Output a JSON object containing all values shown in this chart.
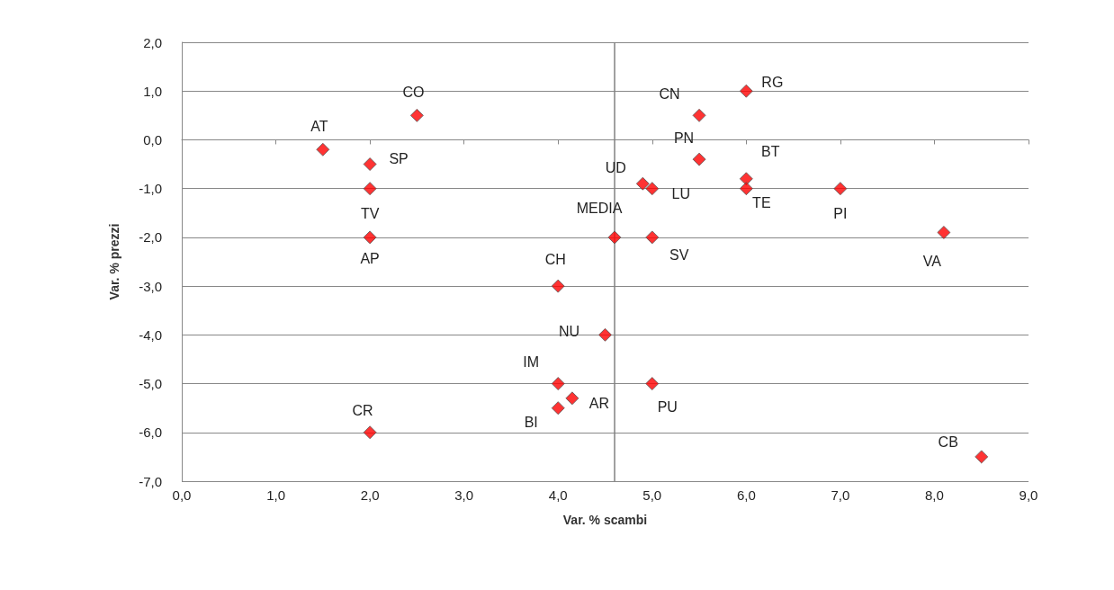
{
  "chart_data": {
    "type": "scatter",
    "xlabel": "Var. % scambi",
    "ylabel": "Var. % prezzi",
    "x": [
      1.5,
      2.5,
      2.0,
      2.0,
      2.0,
      2.0,
      4.0,
      4.5,
      4.0,
      4.15,
      4.0,
      4.6,
      4.9,
      5.0,
      5.0,
      5.0,
      5.5,
      5.5,
      6.0,
      6.0,
      6.0,
      7.0,
      8.1,
      8.5
    ],
    "series": [
      {
        "color": "#ff0000",
        "values": [
          -0.2,
          0.5,
          -0.5,
          -1.0,
          -2.0,
          -6.0,
          -3.0,
          -4.0,
          -5.0,
          -5.3,
          -5.5,
          -2.0,
          -0.9,
          -1.0,
          -2.0,
          -5.0,
          0.5,
          -0.4,
          1.0,
          -0.8,
          -1.0,
          -1.0,
          -1.9,
          -6.5
        ]
      }
    ],
    "marker": "diamond",
    "grid": "y",
    "xlim": [
      0,
      9
    ],
    "xticks": [
      {
        "value": 0,
        "label": "0,0"
      },
      {
        "value": 1,
        "label": "1,0"
      },
      {
        "value": 2,
        "label": "2,0"
      },
      {
        "value": 3,
        "label": "3,0"
      },
      {
        "value": 4,
        "label": "4,0"
      },
      {
        "value": 5,
        "label": "5,0"
      },
      {
        "value": 6,
        "label": "6,0"
      },
      {
        "value": 7,
        "label": "7,0"
      },
      {
        "value": 8,
        "label": "8,0"
      },
      {
        "value": 9,
        "label": "9,0"
      }
    ],
    "ylim": [
      -7,
      2
    ],
    "yticks": [
      {
        "value": -7,
        "label": "-7,0"
      },
      {
        "value": -6,
        "label": "-6,0"
      },
      {
        "value": -5,
        "label": "-5,0"
      },
      {
        "value": -4,
        "label": "-4,0"
      },
      {
        "value": -3,
        "label": "-3,0"
      },
      {
        "value": -2,
        "label": "-2,0"
      },
      {
        "value": -1,
        "label": "-1,0"
      },
      {
        "value": 0,
        "label": "0,0"
      },
      {
        "value": 1,
        "label": "1,0"
      },
      {
        "value": 2,
        "label": "2,0"
      }
    ],
    "ref_lines": [
      {
        "axis": "x",
        "value": 4.6,
        "color": "#808080"
      }
    ],
    "annotations": [
      {
        "text": "AT",
        "x": 1.5,
        "y": -0.2
      },
      {
        "text": "CO",
        "x": 2.5,
        "y": 0.5
      },
      {
        "text": "SP",
        "x": 2.0,
        "y": -0.5
      },
      {
        "text": "TV",
        "x": 2.0,
        "y": -1.0
      },
      {
        "text": "AP",
        "x": 2.0,
        "y": -2.0
      },
      {
        "text": "CR",
        "x": 2.0,
        "y": -6.0
      },
      {
        "text": "CH",
        "x": 4.0,
        "y": -3.0
      },
      {
        "text": "NU",
        "x": 4.5,
        "y": -4.0
      },
      {
        "text": "IM",
        "x": 4.0,
        "y": -5.0
      },
      {
        "text": "AR",
        "x": 4.15,
        "y": -5.3
      },
      {
        "text": "BI",
        "x": 4.0,
        "y": -5.5
      },
      {
        "text": "MEDIA",
        "x": 4.6,
        "y": -2.0
      },
      {
        "text": "UD",
        "x": 4.9,
        "y": -0.9
      },
      {
        "text": "LU",
        "x": 5.0,
        "y": -1.0
      },
      {
        "text": "SV",
        "x": 5.0,
        "y": -2.0
      },
      {
        "text": "PU",
        "x": 5.0,
        "y": -5.0
      },
      {
        "text": "CN",
        "x": 5.5,
        "y": 0.5
      },
      {
        "text": "PN",
        "x": 5.5,
        "y": -0.4
      },
      {
        "text": "RG",
        "x": 6.0,
        "y": 1.0
      },
      {
        "text": "BT",
        "x": 6.0,
        "y": -0.8
      },
      {
        "text": "TE",
        "x": 6.0,
        "y": -1.0
      },
      {
        "text": "PI",
        "x": 7.0,
        "y": -1.0
      },
      {
        "text": "VA",
        "x": 8.1,
        "y": -1.9
      },
      {
        "text": "CB",
        "x": 8.5,
        "y": -6.5
      }
    ]
  }
}
